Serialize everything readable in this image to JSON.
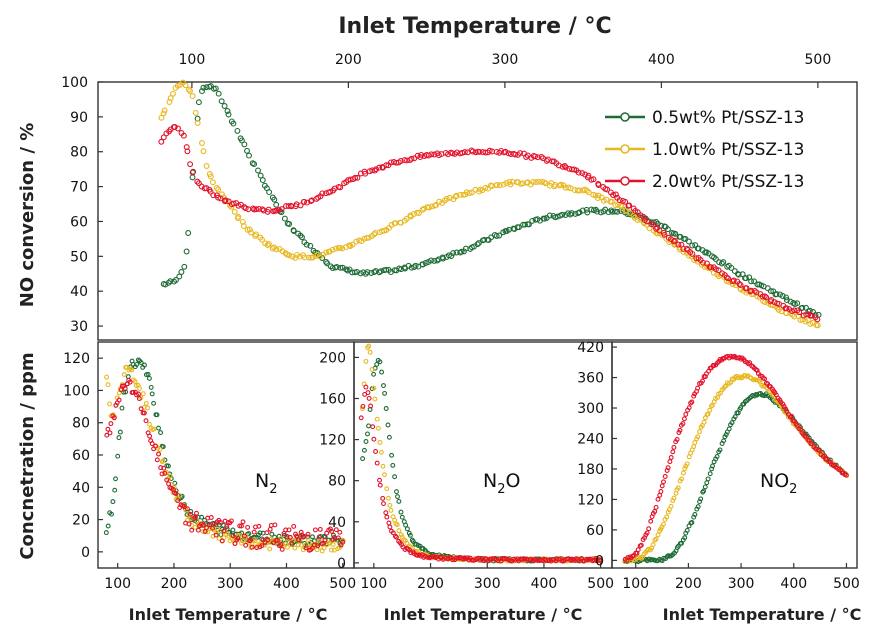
{
  "colors": {
    "s05": "#1e6b35",
    "s10": "#e8b820",
    "s20": "#e3122b"
  },
  "chart_data": [
    {
      "id": "no_conversion",
      "type": "scatter",
      "title": "",
      "xlabel": "Inlet Temperature / °C",
      "ylabel": "NO conversion / %",
      "xlim": [
        40,
        525
      ],
      "ylim": [
        26,
        100
      ],
      "xticks": [
        100,
        200,
        300,
        400,
        500
      ],
      "yticks": [
        30,
        40,
        50,
        60,
        70,
        80,
        90,
        100
      ],
      "legend_position": "top-right",
      "series": [
        {
          "name": "0.5wt% Pt/SSZ-13",
          "color": "#1e6b35",
          "x": [
            82,
            90,
            96,
            100,
            105,
            110,
            115,
            120,
            130,
            140,
            150,
            160,
            175,
            190,
            210,
            230,
            250,
            275,
            300,
            325,
            350,
            375,
            400,
            425,
            450,
            475,
            500
          ],
          "y": [
            42,
            43,
            48,
            70,
            97,
            99,
            98,
            94,
            85,
            76,
            68,
            60,
            53,
            47,
            45,
            46,
            48,
            52,
            57,
            61,
            63,
            63,
            59,
            52,
            45,
            39,
            33
          ]
        },
        {
          "name": "1.0wt% Pt/SSZ-13",
          "color": "#e8b820",
          "x": [
            80,
            85,
            90,
            95,
            100,
            105,
            110,
            115,
            125,
            135,
            150,
            165,
            180,
            200,
            225,
            250,
            275,
            300,
            325,
            350,
            375,
            400,
            425,
            450,
            475,
            500
          ],
          "y": [
            89,
            94,
            99,
            100,
            97,
            85,
            75,
            70,
            64,
            58,
            53,
            50,
            50,
            53,
            58,
            64,
            68,
            71,
            71,
            69,
            64,
            56,
            48,
            41,
            35,
            30
          ]
        },
        {
          "name": "2.0wt% Pt/SSZ-13",
          "color": "#e3122b",
          "x": [
            80,
            85,
            90,
            95,
            98,
            102,
            106,
            110,
            120,
            135,
            150,
            170,
            190,
            210,
            230,
            250,
            275,
            300,
            325,
            350,
            375,
            400,
            425,
            450,
            475,
            500
          ],
          "y": [
            83,
            86,
            87,
            85,
            78,
            72,
            70,
            69,
            66,
            64,
            63,
            65,
            69,
            74,
            77,
            79,
            80,
            80,
            78,
            74,
            66,
            57,
            49,
            42,
            36,
            32
          ]
        }
      ]
    },
    {
      "id": "n2",
      "type": "scatter",
      "title": "",
      "label": "N",
      "label_sub": "2",
      "xlabel": "Inlet Temperature / °C",
      "ylabel": "Concnetration / ppm",
      "xlim": [
        65,
        520
      ],
      "ylim": [
        -10,
        130
      ],
      "xticks": [
        100,
        200,
        300,
        400,
        500
      ],
      "yticks": [
        0,
        20,
        40,
        60,
        80,
        100,
        120
      ],
      "series": [
        {
          "name": "0.5wt% Pt/SSZ-13",
          "color": "#1e6b35",
          "x": [
            80,
            90,
            100,
            110,
            120,
            130,
            140,
            150,
            160,
            170,
            180,
            200,
            225,
            250,
            300,
            350,
            400,
            450,
            500
          ],
          "y": [
            15,
            25,
            60,
            95,
            112,
            118,
            117,
            112,
            100,
            85,
            65,
            40,
            25,
            18,
            12,
            9,
            8,
            7,
            7
          ]
        },
        {
          "name": "1.0wt% Pt/SSZ-13",
          "color": "#e8b820",
          "x": [
            80,
            90,
            100,
            110,
            120,
            130,
            140,
            150,
            160,
            180,
            200,
            225,
            250,
            300,
            350,
            400,
            450,
            500
          ],
          "y": [
            110,
            80,
            95,
            110,
            112,
            108,
            100,
            90,
            78,
            55,
            38,
            22,
            14,
            8,
            5,
            5,
            4,
            4
          ]
        },
        {
          "name": "2.0wt% Pt/SSZ-13",
          "color": "#e3122b",
          "x": [
            80,
            90,
            100,
            110,
            120,
            130,
            140,
            150,
            165,
            180,
            200,
            225,
            250,
            300,
            350,
            400,
            450,
            500
          ],
          "y": [
            70,
            80,
            95,
            102,
            104,
            100,
            92,
            80,
            65,
            50,
            35,
            22,
            16,
            12,
            10,
            9,
            8,
            8
          ]
        }
      ]
    },
    {
      "id": "n2o",
      "type": "scatter",
      "title": "",
      "label": "N",
      "label_sub": "2",
      "label_after": "O",
      "xlabel": "Inlet Temperature / °C",
      "ylabel": "",
      "xlim": [
        65,
        520
      ],
      "ylim": [
        -5,
        215
      ],
      "xticks": [
        100,
        200,
        300,
        400,
        500
      ],
      "yticks": [
        0,
        40,
        80,
        120,
        160,
        200
      ],
      "series": [
        {
          "name": "0.5wt% Pt/SSZ-13",
          "color": "#1e6b35",
          "x": [
            80,
            90,
            100,
            110,
            120,
            130,
            140,
            150,
            170,
            200,
            250,
            300,
            400,
            500
          ],
          "y": [
            100,
            130,
            185,
            200,
            160,
            110,
            70,
            45,
            20,
            8,
            4,
            3,
            3,
            3
          ]
        },
        {
          "name": "1.0wt% Pt/SSZ-13",
          "color": "#e8b820",
          "x": [
            80,
            85,
            90,
            95,
            100,
            110,
            120,
            130,
            150,
            170,
            200,
            250,
            300,
            400,
            500
          ],
          "y": [
            150,
            190,
            215,
            200,
            170,
            120,
            80,
            50,
            25,
            12,
            6,
            4,
            3,
            3,
            3
          ]
        },
        {
          "name": "2.0wt% Pt/SSZ-13",
          "color": "#e3122b",
          "x": [
            78,
            82,
            86,
            90,
            95,
            100,
            110,
            120,
            130,
            150,
            170,
            200,
            250,
            300,
            400,
            500
          ],
          "y": [
            140,
            160,
            170,
            165,
            150,
            120,
            80,
            50,
            32,
            16,
            9,
            5,
            4,
            3,
            3,
            3
          ]
        }
      ]
    },
    {
      "id": "no2",
      "type": "scatter",
      "title": "",
      "label": "NO",
      "label_sub": "2",
      "xlabel": "Inlet Temperature / °C",
      "ylabel": "",
      "xlim": [
        55,
        520
      ],
      "ylim": [
        -15,
        430
      ],
      "xticks": [
        100,
        200,
        300,
        400,
        500
      ],
      "yticks": [
        0,
        60,
        120,
        180,
        240,
        300,
        360,
        420
      ],
      "series": [
        {
          "name": "0.5wt% Pt/SSZ-13",
          "color": "#1e6b35",
          "x": [
            80,
            120,
            150,
            170,
            190,
            210,
            230,
            250,
            270,
            290,
            310,
            330,
            350,
            375,
            400,
            425,
            450,
            475,
            500
          ],
          "y": [
            0,
            0,
            2,
            12,
            40,
            85,
            140,
            195,
            245,
            285,
            315,
            328,
            325,
            305,
            275,
            245,
            215,
            190,
            170
          ]
        },
        {
          "name": "1.0wt% Pt/SSZ-13",
          "color": "#e8b820",
          "x": [
            80,
            110,
            130,
            150,
            170,
            190,
            210,
            230,
            250,
            270,
            290,
            310,
            330,
            350,
            375,
            400,
            425,
            450,
            475,
            500
          ],
          "y": [
            0,
            5,
            25,
            65,
            115,
            170,
            225,
            275,
            315,
            345,
            360,
            362,
            355,
            338,
            305,
            270,
            240,
            210,
            188,
            168
          ]
        },
        {
          "name": "2.0wt% Pt/SSZ-13",
          "color": "#e3122b",
          "x": [
            80,
            100,
            120,
            140,
            160,
            180,
            200,
            220,
            240,
            260,
            280,
            300,
            320,
            340,
            360,
            380,
            400,
            425,
            450,
            475,
            500
          ],
          "y": [
            0,
            12,
            50,
            110,
            180,
            245,
            300,
            345,
            375,
            395,
            402,
            398,
            385,
            362,
            335,
            305,
            275,
            240,
            212,
            188,
            168
          ]
        }
      ]
    }
  ]
}
